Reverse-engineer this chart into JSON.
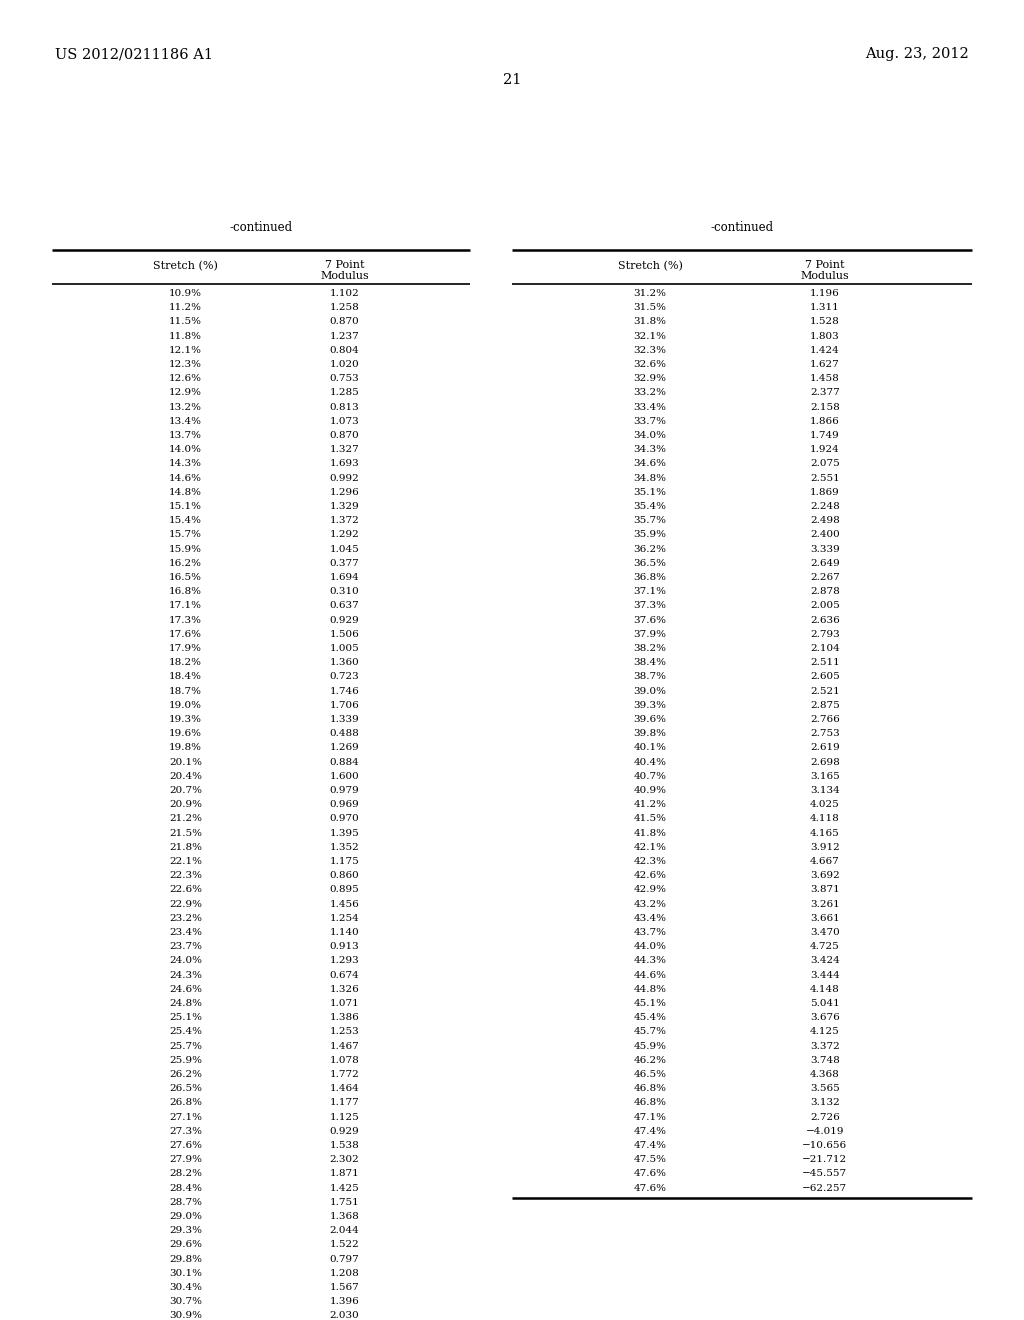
{
  "patent_number": "US 2012/0211186 A1",
  "date": "Aug. 23, 2012",
  "page_number": "21",
  "left_table": {
    "title": "-continued",
    "col1_header": "Stretch (%)",
    "col2_header": "7 Point\nModulus",
    "rows": [
      [
        "10.9%",
        "1.102"
      ],
      [
        "11.2%",
        "1.258"
      ],
      [
        "11.5%",
        "0.870"
      ],
      [
        "11.8%",
        "1.237"
      ],
      [
        "12.1%",
        "0.804"
      ],
      [
        "12.3%",
        "1.020"
      ],
      [
        "12.6%",
        "0.753"
      ],
      [
        "12.9%",
        "1.285"
      ],
      [
        "13.2%",
        "0.813"
      ],
      [
        "13.4%",
        "1.073"
      ],
      [
        "13.7%",
        "0.870"
      ],
      [
        "14.0%",
        "1.327"
      ],
      [
        "14.3%",
        "1.693"
      ],
      [
        "14.6%",
        "0.992"
      ],
      [
        "14.8%",
        "1.296"
      ],
      [
        "15.1%",
        "1.329"
      ],
      [
        "15.4%",
        "1.372"
      ],
      [
        "15.7%",
        "1.292"
      ],
      [
        "15.9%",
        "1.045"
      ],
      [
        "16.2%",
        "0.377"
      ],
      [
        "16.5%",
        "1.694"
      ],
      [
        "16.8%",
        "0.310"
      ],
      [
        "17.1%",
        "0.637"
      ],
      [
        "17.3%",
        "0.929"
      ],
      [
        "17.6%",
        "1.506"
      ],
      [
        "17.9%",
        "1.005"
      ],
      [
        "18.2%",
        "1.360"
      ],
      [
        "18.4%",
        "0.723"
      ],
      [
        "18.7%",
        "1.746"
      ],
      [
        "19.0%",
        "1.706"
      ],
      [
        "19.3%",
        "1.339"
      ],
      [
        "19.6%",
        "0.488"
      ],
      [
        "19.8%",
        "1.269"
      ],
      [
        "20.1%",
        "0.884"
      ],
      [
        "20.4%",
        "1.600"
      ],
      [
        "20.7%",
        "0.979"
      ],
      [
        "20.9%",
        "0.969"
      ],
      [
        "21.2%",
        "0.970"
      ],
      [
        "21.5%",
        "1.395"
      ],
      [
        "21.8%",
        "1.352"
      ],
      [
        "22.1%",
        "1.175"
      ],
      [
        "22.3%",
        "0.860"
      ],
      [
        "22.6%",
        "0.895"
      ],
      [
        "22.9%",
        "1.456"
      ],
      [
        "23.2%",
        "1.254"
      ],
      [
        "23.4%",
        "1.140"
      ],
      [
        "23.7%",
        "0.913"
      ],
      [
        "24.0%",
        "1.293"
      ],
      [
        "24.3%",
        "0.674"
      ],
      [
        "24.6%",
        "1.326"
      ],
      [
        "24.8%",
        "1.071"
      ],
      [
        "25.1%",
        "1.386"
      ],
      [
        "25.4%",
        "1.253"
      ],
      [
        "25.7%",
        "1.467"
      ],
      [
        "25.9%",
        "1.078"
      ],
      [
        "26.2%",
        "1.772"
      ],
      [
        "26.5%",
        "1.464"
      ],
      [
        "26.8%",
        "1.177"
      ],
      [
        "27.1%",
        "1.125"
      ],
      [
        "27.3%",
        "0.929"
      ],
      [
        "27.6%",
        "1.538"
      ],
      [
        "27.9%",
        "2.302"
      ],
      [
        "28.2%",
        "1.871"
      ],
      [
        "28.4%",
        "1.425"
      ],
      [
        "28.7%",
        "1.751"
      ],
      [
        "29.0%",
        "1.368"
      ],
      [
        "29.3%",
        "2.044"
      ],
      [
        "29.6%",
        "1.522"
      ],
      [
        "29.8%",
        "0.797"
      ],
      [
        "30.1%",
        "1.208"
      ],
      [
        "30.4%",
        "1.567"
      ],
      [
        "30.7%",
        "1.396"
      ],
      [
        "30.9%",
        "2.030"
      ]
    ]
  },
  "right_table": {
    "title": "-continued",
    "col1_header": "Stretch (%)",
    "col2_header": "7 Point\nModulus",
    "rows": [
      [
        "31.2%",
        "1.196"
      ],
      [
        "31.5%",
        "1.311"
      ],
      [
        "31.8%",
        "1.528"
      ],
      [
        "32.1%",
        "1.803"
      ],
      [
        "32.3%",
        "1.424"
      ],
      [
        "32.6%",
        "1.627"
      ],
      [
        "32.9%",
        "1.458"
      ],
      [
        "33.2%",
        "2.377"
      ],
      [
        "33.4%",
        "2.158"
      ],
      [
        "33.7%",
        "1.866"
      ],
      [
        "34.0%",
        "1.749"
      ],
      [
        "34.3%",
        "1.924"
      ],
      [
        "34.6%",
        "2.075"
      ],
      [
        "34.8%",
        "2.551"
      ],
      [
        "35.1%",
        "1.869"
      ],
      [
        "35.4%",
        "2.248"
      ],
      [
        "35.7%",
        "2.498"
      ],
      [
        "35.9%",
        "2.400"
      ],
      [
        "36.2%",
        "3.339"
      ],
      [
        "36.5%",
        "2.649"
      ],
      [
        "36.8%",
        "2.267"
      ],
      [
        "37.1%",
        "2.878"
      ],
      [
        "37.3%",
        "2.005"
      ],
      [
        "37.6%",
        "2.636"
      ],
      [
        "37.9%",
        "2.793"
      ],
      [
        "38.2%",
        "2.104"
      ],
      [
        "38.4%",
        "2.511"
      ],
      [
        "38.7%",
        "2.605"
      ],
      [
        "39.0%",
        "2.521"
      ],
      [
        "39.3%",
        "2.875"
      ],
      [
        "39.6%",
        "2.766"
      ],
      [
        "39.8%",
        "2.753"
      ],
      [
        "40.1%",
        "2.619"
      ],
      [
        "40.4%",
        "2.698"
      ],
      [
        "40.7%",
        "3.165"
      ],
      [
        "40.9%",
        "3.134"
      ],
      [
        "41.2%",
        "4.025"
      ],
      [
        "41.5%",
        "4.118"
      ],
      [
        "41.8%",
        "4.165"
      ],
      [
        "42.1%",
        "3.912"
      ],
      [
        "42.3%",
        "4.667"
      ],
      [
        "42.6%",
        "3.692"
      ],
      [
        "42.9%",
        "3.871"
      ],
      [
        "43.2%",
        "3.261"
      ],
      [
        "43.4%",
        "3.661"
      ],
      [
        "43.7%",
        "3.470"
      ],
      [
        "44.0%",
        "4.725"
      ],
      [
        "44.3%",
        "3.424"
      ],
      [
        "44.6%",
        "3.444"
      ],
      [
        "44.8%",
        "4.148"
      ],
      [
        "45.1%",
        "5.041"
      ],
      [
        "45.4%",
        "3.676"
      ],
      [
        "45.7%",
        "4.125"
      ],
      [
        "45.9%",
        "3.372"
      ],
      [
        "46.2%",
        "3.748"
      ],
      [
        "46.5%",
        "4.368"
      ],
      [
        "46.8%",
        "3.565"
      ],
      [
        "46.8%",
        "3.132"
      ],
      [
        "47.1%",
        "2.726"
      ],
      [
        "47.4%",
        "−4.019"
      ],
      [
        "47.4%",
        "−10.656"
      ],
      [
        "47.5%",
        "−21.712"
      ],
      [
        "47.6%",
        "−45.557"
      ],
      [
        "47.6%",
        "−62.257"
      ]
    ]
  },
  "bg_color": "#ffffff",
  "text_color": "#000000",
  "font_size": 7.5,
  "header_font_size": 8.0
}
